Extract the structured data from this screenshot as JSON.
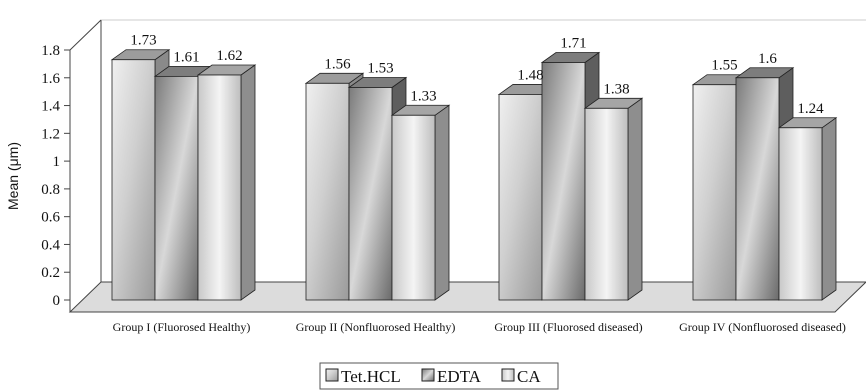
{
  "chart_data": {
    "type": "bar",
    "title": "",
    "xlabel": "",
    "ylabel": "Mean (μm)",
    "ylim": [
      0,
      1.8
    ],
    "yticks": [
      "0",
      "0.2",
      "0.4",
      "0.6",
      "0.8",
      "1",
      "1.2",
      "1.4",
      "1.6",
      "1.8"
    ],
    "categories": [
      "Group I (Fluorosed Healthy)",
      "Group II (Nonfluorosed Healthy)",
      "Group III (Fluorosed diseased)",
      "Group IV (Nonfluorosed diseased)"
    ],
    "series": [
      {
        "name": "Tet.HCL",
        "values": [
          1.73,
          1.56,
          1.48,
          1.55
        ],
        "labels": [
          "1.73",
          "1.56",
          "1.48",
          "1.55"
        ]
      },
      {
        "name": "EDTA",
        "values": [
          1.61,
          1.53,
          1.71,
          1.6
        ],
        "labels": [
          "1.61",
          "1.53",
          "1.71",
          "1.6"
        ]
      },
      {
        "name": "CA",
        "values": [
          1.62,
          1.33,
          1.38,
          1.24
        ],
        "labels": [
          "1.62",
          "1.33",
          "1.38",
          "1.24"
        ]
      }
    ],
    "legend_position": "bottom-center",
    "grid": false,
    "style": "3d-bars-grayscale"
  }
}
